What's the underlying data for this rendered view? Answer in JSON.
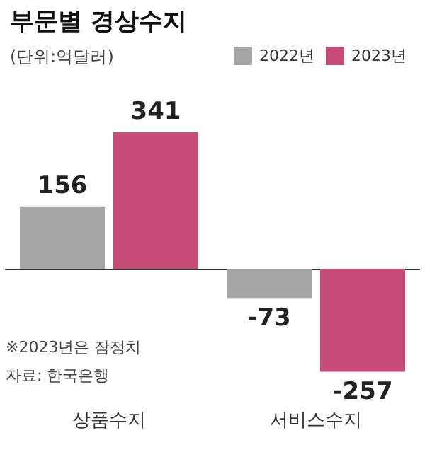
{
  "chart_data": {
    "type": "bar",
    "title": "부문별 경상수지",
    "subtitle": "(단위:억달러)",
    "categories": [
      "상품수지",
      "서비스수지"
    ],
    "series": [
      {
        "name": "2022년",
        "color": "#a6a6a6",
        "values": [
          156,
          -73
        ]
      },
      {
        "name": "2023년",
        "color": "#c64b76",
        "values": [
          341,
          -257
        ]
      }
    ],
    "data_labels": true,
    "legend": "top right",
    "annotations": [
      "※2023년은 잠정치",
      "자료: 한국은행"
    ]
  }
}
